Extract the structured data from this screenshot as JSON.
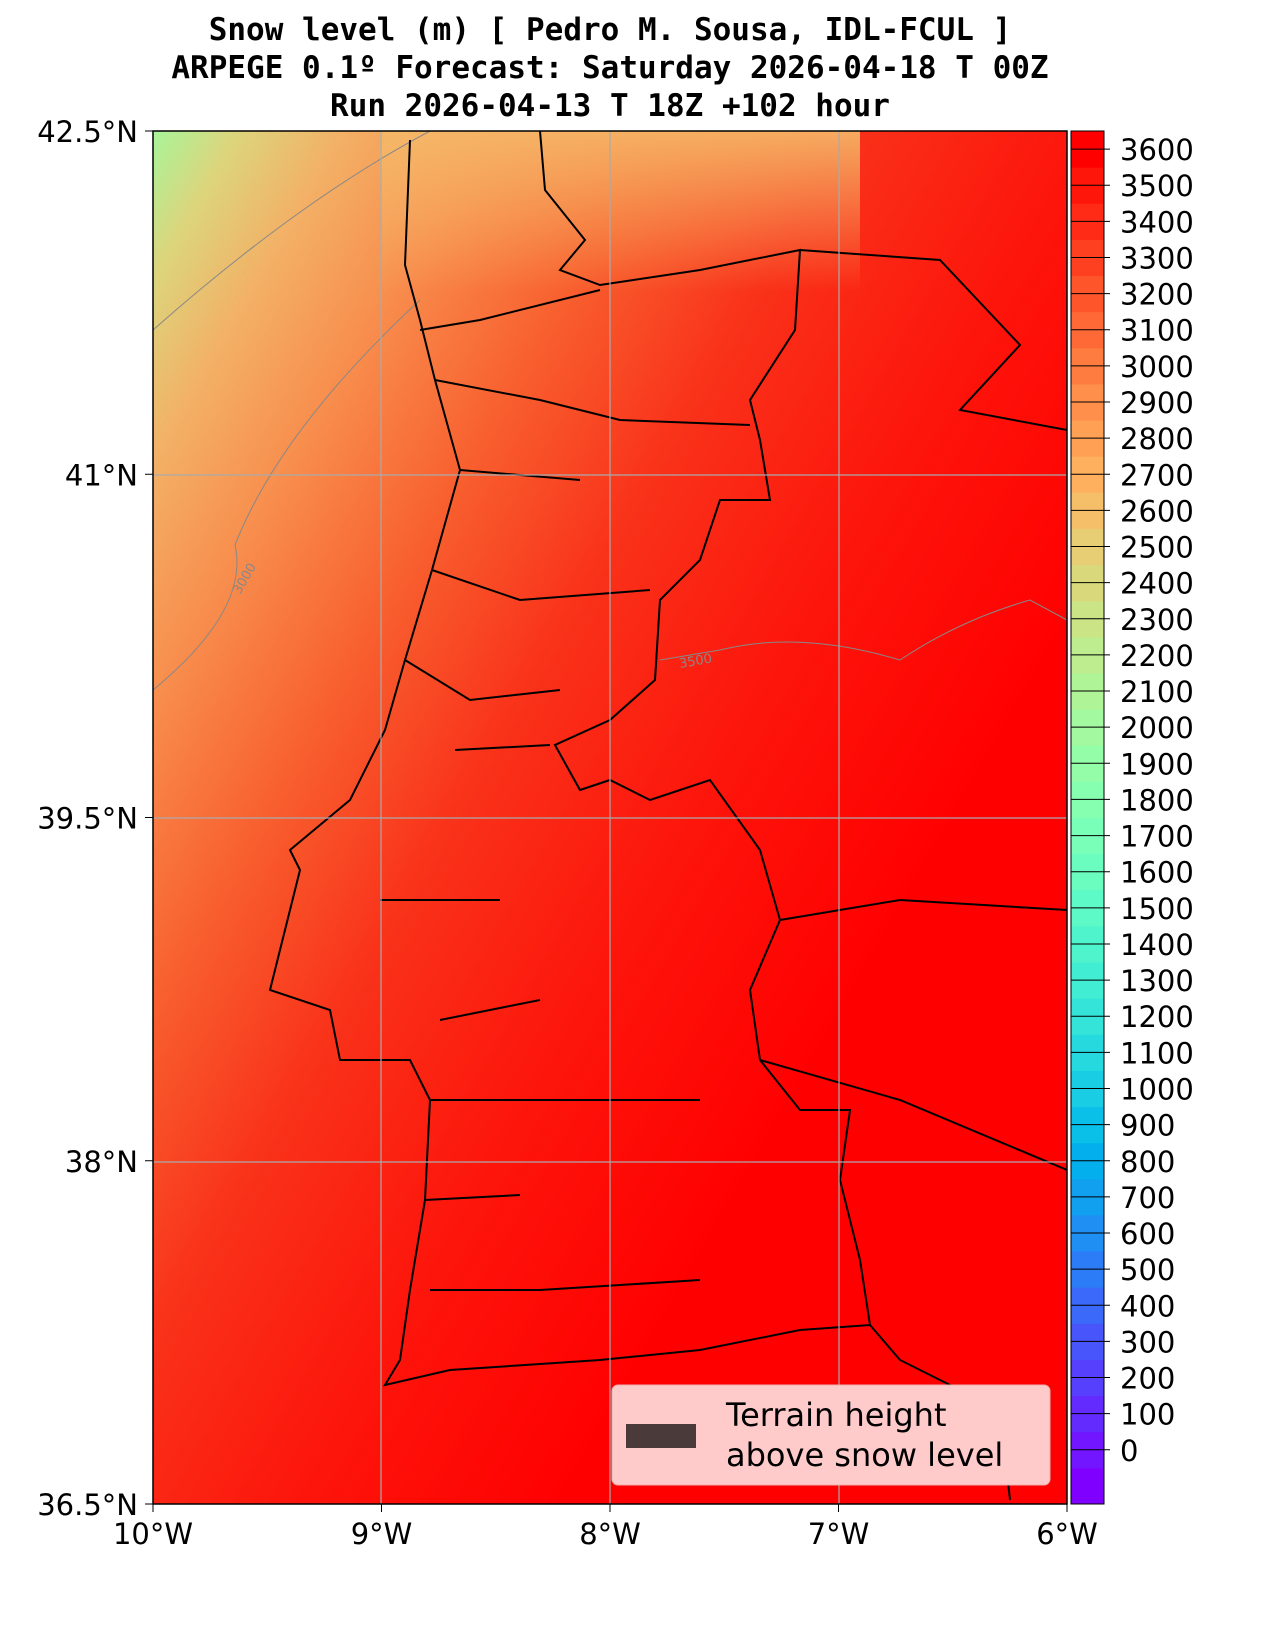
{
  "chart_data": {
    "type": "heatmap",
    "title": [
      "Snow level (m) [ Pedro M. Sousa, IDL-FCUL ]",
      "ARPEGE 0.1º Forecast: Saturday 2026-04-18 T 00Z",
      "Run 2026-04-13 T 18Z +102 hour"
    ],
    "xlabel": "",
    "ylabel": "",
    "xlim": [
      -10,
      -6
    ],
    "ylim": [
      36.5,
      42.5
    ],
    "x_ticks": [
      "10°W",
      "9°W",
      "8°W",
      "7°W",
      "6°W"
    ],
    "y_ticks": [
      "42.5°N",
      "41°N",
      "39.5°N",
      "38°N",
      "36.5°N"
    ],
    "grid": true,
    "colorbar": {
      "min": -100,
      "max": 3700,
      "step": 100,
      "ticks": [
        0,
        100,
        200,
        300,
        400,
        500,
        600,
        700,
        800,
        900,
        1000,
        1100,
        1200,
        1300,
        1400,
        1500,
        1600,
        1700,
        1800,
        1900,
        2000,
        2100,
        2200,
        2300,
        2400,
        2500,
        2600,
        2700,
        2800,
        2900,
        3000,
        3100,
        3200,
        3300,
        3400,
        3500,
        3600
      ]
    },
    "contour_labels": [
      "3000",
      "3500"
    ],
    "field_summary": {
      "northwest_corner": 2000,
      "north": 2800,
      "center": 3200,
      "south_east": 3700
    },
    "legend": {
      "placement": "lower-right",
      "label": [
        "Terrain height",
        "above snow level"
      ],
      "color": "#4a3a3a"
    }
  }
}
